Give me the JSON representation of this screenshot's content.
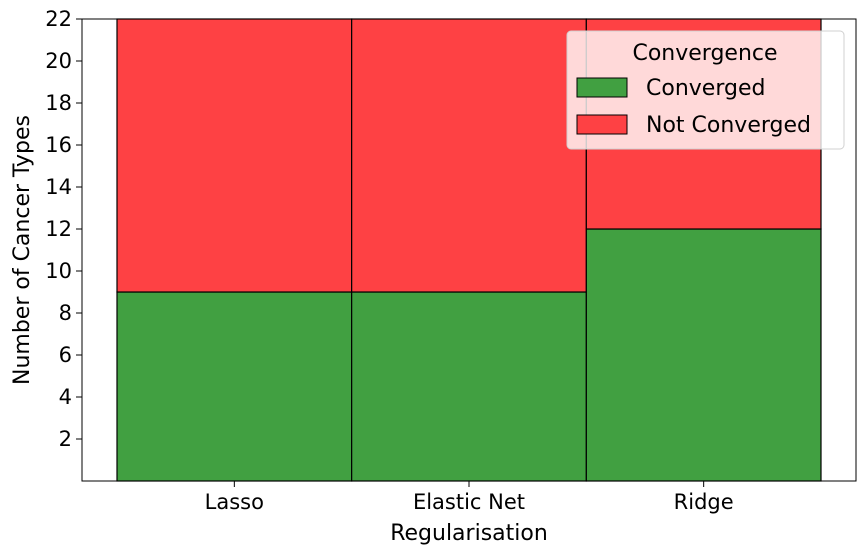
{
  "chart_data": {
    "type": "bar",
    "stacked": true,
    "categories": [
      "Lasso",
      "Elastic Net",
      "Ridge"
    ],
    "series": [
      {
        "name": "Converged",
        "values": [
          9,
          9,
          12
        ],
        "color": "#41a041"
      },
      {
        "name": "Not Converged",
        "values": [
          13,
          13,
          10
        ],
        "color": "#fe4144"
      }
    ],
    "xlabel": "Regularisation",
    "ylabel": "Number of Cancer Types",
    "ylim": [
      0,
      22
    ],
    "yticks": [
      2,
      4,
      6,
      8,
      10,
      12,
      14,
      16,
      18,
      20,
      22
    ],
    "grid": false,
    "legend": {
      "title": "Convergence",
      "placement": "top-right",
      "entries": [
        "Converged",
        "Not Converged"
      ]
    }
  }
}
